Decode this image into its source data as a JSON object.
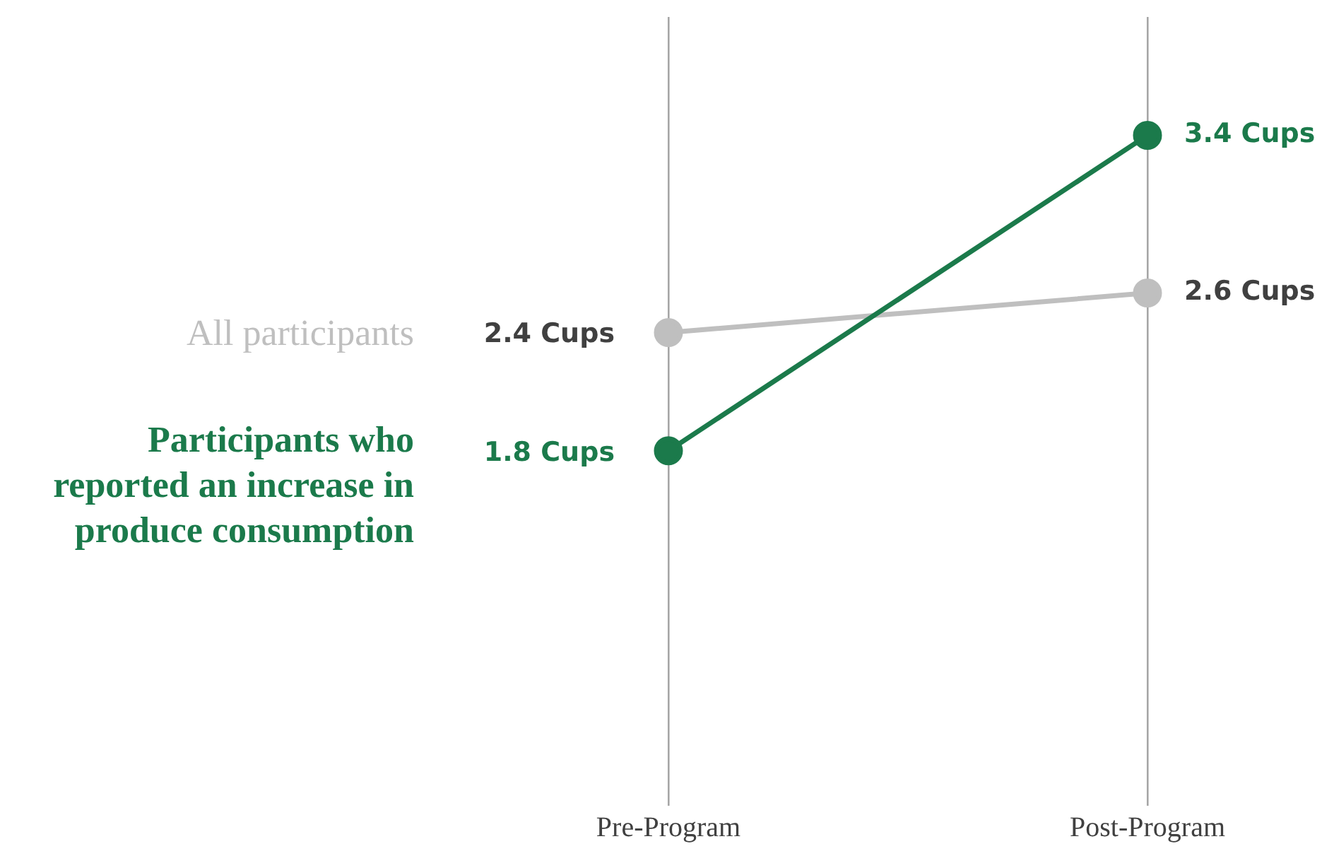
{
  "chart_data": {
    "type": "line",
    "categories": [
      "Pre-Program",
      "Post-Program"
    ],
    "series": [
      {
        "name": "All participants",
        "color": "#bfbfbf",
        "values": [
          2.4,
          2.6
        ],
        "value_labels": [
          "2.4 Cups",
          "2.6 Cups"
        ]
      },
      {
        "name": "Participants who reported an increase in produce consumption",
        "color": "#1b7a4b",
        "values": [
          1.8,
          3.4
        ],
        "value_labels": [
          "1.8 Cups",
          "3.4 Cups"
        ]
      }
    ],
    "ylim": [
      0,
      4
    ],
    "grid": "x",
    "legend": false,
    "tick_labels": "x",
    "marker": "circle",
    "line_style": "solid"
  }
}
